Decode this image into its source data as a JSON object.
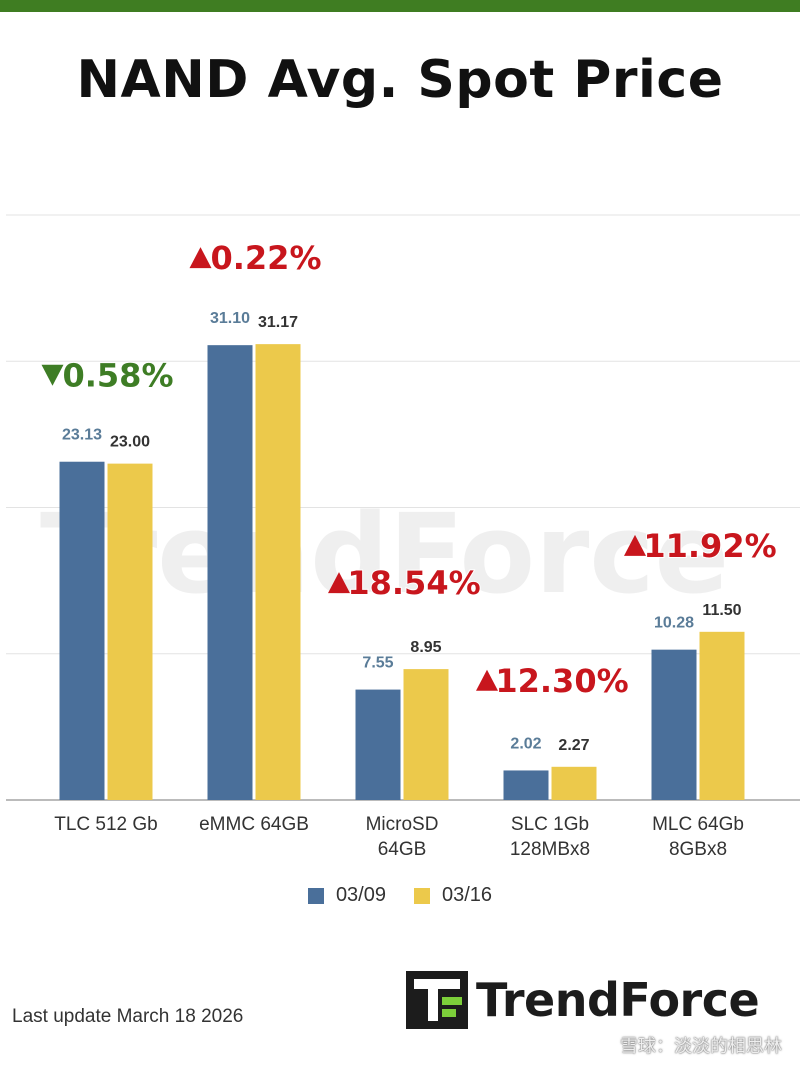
{
  "title": "NAND Avg. Spot Price",
  "colors": {
    "series1": "#4a6f9a",
    "series2": "#ecc94b",
    "up": "#c8161d",
    "down": "#3e7d25",
    "label1": "#5a7c98",
    "label2": "#333333"
  },
  "chart_data": {
    "type": "bar",
    "title": "NAND Avg. Spot Price",
    "categories": [
      [
        "TLC 512 Gb"
      ],
      [
        "eMMC 64GB"
      ],
      [
        "MicroSD",
        "64GB"
      ],
      [
        "SLC 1Gb",
        "128MBx8"
      ],
      [
        "MLC 64Gb",
        "8GBx8"
      ]
    ],
    "series": [
      {
        "name": "03/09",
        "values": [
          23.13,
          31.1,
          7.55,
          2.02,
          10.28
        ],
        "labels": [
          "23.13",
          "31.10",
          "7.55",
          "2.02",
          "10.28"
        ]
      },
      {
        "name": "03/16",
        "values": [
          23.0,
          31.17,
          8.95,
          2.27,
          11.5
        ],
        "labels": [
          "23.00",
          "31.17",
          "8.95",
          "2.27",
          "11.50"
        ]
      }
    ],
    "changes": [
      {
        "direction": "down",
        "text": "0.58%"
      },
      {
        "direction": "up",
        "text": "0.22%"
      },
      {
        "direction": "up",
        "text": "18.54%"
      },
      {
        "direction": "up",
        "text": "12.30%"
      },
      {
        "direction": "up",
        "text": "11.92%"
      }
    ],
    "ylim": [
      0,
      40
    ],
    "grid": true,
    "legend_position": "bottom"
  },
  "legend": [
    {
      "label": "03/09"
    },
    {
      "label": "03/16"
    }
  ],
  "footer": {
    "last_update": "Last update March 18  2026"
  },
  "logo": {
    "text": "TrendForce"
  },
  "watermark": {
    "text": "TrendForce",
    "weibo": "雪球：淡淡的相思林"
  }
}
